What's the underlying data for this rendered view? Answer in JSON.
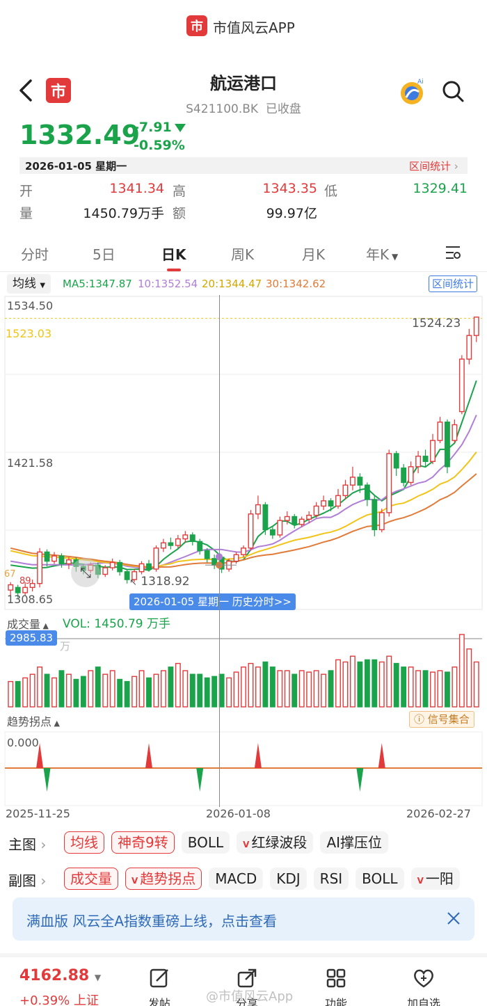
{
  "app_bar": {
    "title": "市值风云APP"
  },
  "header": {
    "name": "航运港口",
    "code_status": "S421100.BK  已收盘"
  },
  "quote": {
    "price": "1332.49",
    "change": "-7.91",
    "change_pct": "-0.59%",
    "date": "2026-01-05 星期一",
    "range_stats_label": "区间统计",
    "open_label": "开",
    "open": "1341.34",
    "high_label": "高",
    "high": "1343.35",
    "low_label": "低",
    "low": "1329.41",
    "vol_label": "量",
    "vol": "1450.79万手",
    "amt_label": "额",
    "amt": "99.97亿"
  },
  "tabs": [
    "分时",
    "5日",
    "日K",
    "周K",
    "月K",
    "年K"
  ],
  "ma_bar": {
    "selector": "均线",
    "ma5": "MA5:1347.87",
    "ma10": "10:1352.54",
    "ma20": "20:1344.47",
    "ma30": "30:1342.62",
    "range_stats": "区间统计"
  },
  "chart_data": {
    "type": "candlestick",
    "y_ticks": [
      "1534.50",
      "1421.58",
      "1308.65"
    ],
    "ref_line": "1523.03",
    "max_label": "1524.23",
    "min_label": "1318.92",
    "crosshair_label": "2026-01-05 星期一 历史分时>>",
    "left_marks": [
      "67",
      "89"
    ],
    "candles": [
      [
        1316,
        1320,
        1312,
        1322
      ],
      [
        1318,
        1314,
        1310,
        1320
      ],
      [
        1314,
        1318,
        1312,
        1322
      ],
      [
        1318,
        1321,
        1315,
        1324
      ],
      [
        1321,
        1345,
        1318,
        1348
      ],
      [
        1345,
        1338,
        1334,
        1347
      ],
      [
        1338,
        1342,
        1336,
        1345
      ],
      [
        1342,
        1336,
        1333,
        1344
      ],
      [
        1336,
        1339,
        1332,
        1341
      ],
      [
        1339,
        1334,
        1330,
        1341
      ],
      [
        1334,
        1331,
        1328,
        1336
      ],
      [
        1331,
        1335,
        1329,
        1337
      ],
      [
        1335,
        1328,
        1325,
        1337
      ],
      [
        1328,
        1333,
        1326,
        1335
      ],
      [
        1333,
        1337,
        1331,
        1340
      ],
      [
        1337,
        1330,
        1327,
        1339
      ],
      [
        1330,
        1324,
        1321,
        1332
      ],
      [
        1324,
        1330,
        1322,
        1332
      ],
      [
        1330,
        1336,
        1328,
        1338
      ],
      [
        1336,
        1332,
        1330,
        1339
      ],
      [
        1332,
        1348,
        1330,
        1350
      ],
      [
        1348,
        1352,
        1345,
        1355
      ],
      [
        1352,
        1350,
        1347,
        1356
      ],
      [
        1350,
        1355,
        1348,
        1358
      ],
      [
        1355,
        1358,
        1352,
        1361
      ],
      [
        1358,
        1353,
        1350,
        1360
      ],
      [
        1353,
        1346,
        1343,
        1355
      ],
      [
        1346,
        1340,
        1337,
        1348
      ],
      [
        1340,
        1335,
        1332,
        1343
      ],
      [
        1341,
        1332,
        1329,
        1343
      ],
      [
        1332,
        1338,
        1330,
        1340
      ],
      [
        1338,
        1343,
        1336,
        1345
      ],
      [
        1343,
        1348,
        1341,
        1350
      ],
      [
        1348,
        1374,
        1346,
        1377
      ],
      [
        1374,
        1381,
        1370,
        1388
      ],
      [
        1381,
        1362,
        1358,
        1383
      ],
      [
        1362,
        1358,
        1355,
        1364
      ],
      [
        1358,
        1369,
        1356,
        1372
      ],
      [
        1369,
        1372,
        1366,
        1376
      ],
      [
        1372,
        1366,
        1363,
        1374
      ],
      [
        1366,
        1370,
        1364,
        1372
      ],
      [
        1370,
        1373,
        1367,
        1376
      ],
      [
        1373,
        1380,
        1371,
        1383
      ],
      [
        1380,
        1384,
        1377,
        1388
      ],
      [
        1384,
        1380,
        1376,
        1386
      ],
      [
        1380,
        1388,
        1378,
        1393
      ],
      [
        1388,
        1396,
        1385,
        1400
      ],
      [
        1396,
        1402,
        1392,
        1410
      ],
      [
        1402,
        1396,
        1390,
        1405
      ],
      [
        1396,
        1385,
        1380,
        1398
      ],
      [
        1385,
        1362,
        1357,
        1388
      ],
      [
        1362,
        1375,
        1360,
        1378
      ],
      [
        1375,
        1420,
        1372,
        1423
      ],
      [
        1420,
        1409,
        1403,
        1422
      ],
      [
        1409,
        1398,
        1395,
        1412
      ],
      [
        1398,
        1410,
        1396,
        1414
      ],
      [
        1410,
        1418,
        1405,
        1422
      ],
      [
        1418,
        1414,
        1410,
        1423
      ],
      [
        1414,
        1430,
        1412,
        1435
      ],
      [
        1430,
        1444,
        1428,
        1448
      ],
      [
        1444,
        1410,
        1405,
        1446
      ],
      [
        1430,
        1442,
        1428,
        1446
      ],
      [
        1452,
        1492,
        1450,
        1495
      ],
      [
        1492,
        1510,
        1488,
        1515
      ],
      [
        1510,
        1524,
        1505,
        1524
      ]
    ],
    "ma_colors": {
      "ma5": "#1aa34a",
      "ma10": "#b07ed6",
      "ma20": "#f0c419",
      "ma30": "#e07b39"
    },
    "volume": {
      "label": "成交量",
      "value": "VOL: 1450.79 万手",
      "tag": "2985.83",
      "scale_label": "万",
      "bars": [
        0.35,
        0.35,
        0.4,
        0.45,
        0.55,
        0.45,
        0.4,
        0.5,
        0.45,
        0.38,
        0.42,
        0.5,
        0.55,
        0.45,
        0.5,
        0.38,
        0.35,
        0.42,
        0.5,
        0.4,
        0.45,
        0.5,
        0.55,
        0.6,
        0.5,
        0.45,
        0.45,
        0.4,
        0.42,
        0.45,
        0.4,
        0.48,
        0.55,
        0.6,
        0.55,
        0.62,
        0.55,
        0.5,
        0.5,
        0.45,
        0.5,
        0.48,
        0.5,
        0.45,
        0.5,
        0.65,
        0.62,
        0.7,
        0.62,
        0.65,
        0.65,
        0.62,
        0.7,
        0.6,
        0.55,
        0.55,
        0.5,
        0.5,
        0.48,
        0.5,
        0.48,
        0.55,
        1.0,
        0.8,
        0.62
      ]
    },
    "indicator": {
      "label": "趋势拐点",
      "zero": "0.000",
      "signal_label": "信号集合",
      "up_idx": [
        4,
        19,
        34,
        51
      ],
      "down_idx": [
        5,
        26,
        48
      ]
    },
    "x_labels": [
      "2025-11-25",
      "2026-01-08",
      "2026-02-27"
    ]
  },
  "main_bar": {
    "label": "主图",
    "chips": [
      "均线",
      "神奇9转",
      "BOLL",
      "红绿波段",
      "AI撑压位"
    ]
  },
  "sub_bar": {
    "label": "副图",
    "chips": [
      "成交量",
      "趋势拐点",
      "MACD",
      "KDJ",
      "RSI",
      "BOLL",
      "一阳"
    ]
  },
  "banner": {
    "text": "满血版 风云全A指数重磅上线，点击查看"
  },
  "bottom": {
    "index_value": "4162.88",
    "index_change": "+0.39%",
    "index_name": "上证",
    "nav": [
      "发帖",
      "分享",
      "功能",
      "加自选"
    ],
    "watermark": "@市值风云App"
  }
}
